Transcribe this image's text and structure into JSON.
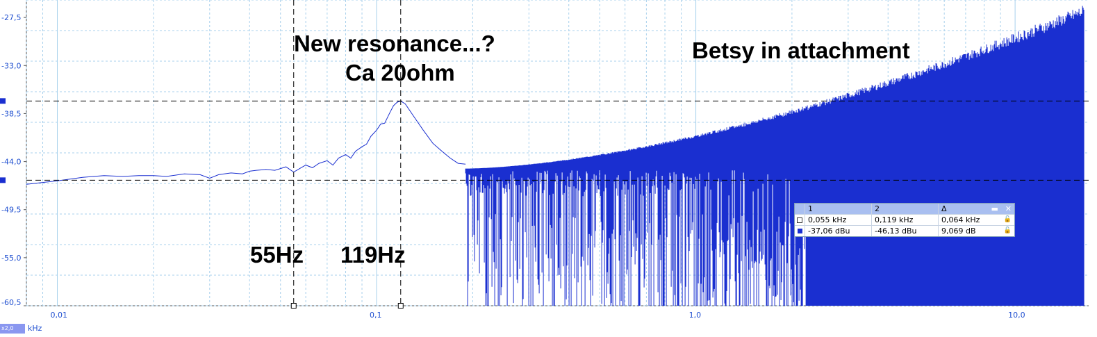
{
  "chart_data": {
    "type": "line",
    "xscale": "log",
    "xlim": [
      0.008,
      17
    ],
    "ylim": [
      -60.5,
      -25.5
    ],
    "xticks": [
      {
        "v": 0.01,
        "label": "0,01"
      },
      {
        "v": 0.1,
        "label": "0,1"
      },
      {
        "v": 1.0,
        "label": "1,0"
      },
      {
        "v": 10.0,
        "label": "10,0"
      }
    ],
    "yticks": [
      {
        "v": -27.5,
        "label": "-27,5"
      },
      {
        "v": -33.0,
        "label": "-33,0"
      },
      {
        "v": -38.5,
        "label": "-38,5"
      },
      {
        "v": -44.0,
        "label": "-44,0"
      },
      {
        "v": -49.5,
        "label": "-49,5"
      },
      {
        "v": -55.0,
        "label": "-55,0"
      },
      {
        "v": -60.5,
        "label": "-60,5"
      }
    ],
    "xunit": "kHz",
    "unit_badge": "x2,0",
    "grid": true,
    "line_color": "#1a2fd0",
    "series": [
      {
        "x": [
          0.008,
          0.01,
          0.012,
          0.014,
          0.016,
          0.018,
          0.02,
          0.022,
          0.025,
          0.028,
          0.03,
          0.032,
          0.035,
          0.038,
          0.04,
          0.042,
          0.045,
          0.048,
          0.05,
          0.052,
          0.055,
          0.058,
          0.06,
          0.063,
          0.066,
          0.07,
          0.073,
          0.076,
          0.08,
          0.083,
          0.086,
          0.09,
          0.093,
          0.096,
          0.1,
          0.103,
          0.106,
          0.11,
          0.113,
          0.116,
          0.119,
          0.123,
          0.13,
          0.14,
          0.15,
          0.16,
          0.17,
          0.18,
          0.19
        ],
        "y": [
          -46.6,
          -46.2,
          -45.8,
          -45.6,
          -45.7,
          -45.6,
          -45.6,
          -45.7,
          -45.4,
          -45.5,
          -45.9,
          -45.5,
          -45.3,
          -45.4,
          -45.1,
          -45.0,
          -44.9,
          -45.0,
          -44.8,
          -44.6,
          -45.2,
          -44.7,
          -44.4,
          -44.7,
          -44.2,
          -43.9,
          -44.4,
          -43.6,
          -43.2,
          -43.6,
          -42.8,
          -42.3,
          -42.0,
          -41.1,
          -40.4,
          -39.7,
          -39.6,
          -38.4,
          -37.6,
          -37.2,
          -37.06,
          -37.4,
          -38.7,
          -40.4,
          -41.9,
          -42.8,
          -43.6,
          -44.2,
          -44.3
        ]
      }
    ],
    "noise_region": {
      "x_start": 0.19,
      "x_end": 16.5,
      "top_start": -44.8,
      "top_end": -26.0,
      "baseline": -45.0,
      "bottom": -60.5
    },
    "cursors": {
      "v1": 0.055,
      "v2": 0.119,
      "h1": -37.06,
      "h2": -46.13
    }
  },
  "annotations": {
    "resonance": "New resonance...?",
    "impedance": "Ca 20ohm",
    "attachment": "Betsy in attachment",
    "cursor1_label": "55Hz",
    "cursor2_label": "119Hz"
  },
  "cursor_table": {
    "headers": [
      "1",
      "2",
      "Δ"
    ],
    "rows": [
      {
        "c1": "0,055 kHz",
        "c2": "0,119 kHz",
        "d": "0,064 kHz"
      },
      {
        "c1": "-37,06 dBu",
        "c2": "-46,13 dBu",
        "d": "9,069 dB"
      }
    ],
    "minimize": "▬",
    "close": "✕"
  }
}
